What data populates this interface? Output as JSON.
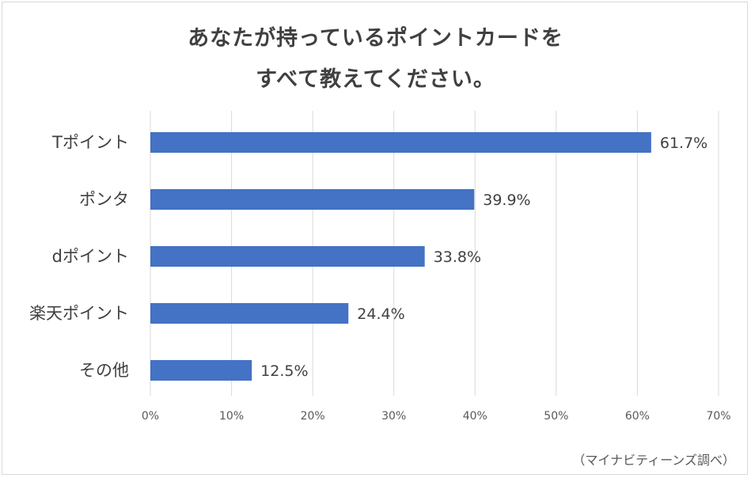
{
  "title_line1": "あなたが持っているポイントカードを",
  "title_line2": "すべて教えてください。",
  "source": "（マイナビティーンズ調べ）",
  "chart_data": {
    "type": "bar",
    "orientation": "horizontal",
    "categories": [
      "Tポイント",
      "ポンタ",
      "dポイント",
      "楽天ポイント",
      "その他"
    ],
    "values": [
      61.7,
      39.9,
      33.8,
      24.4,
      12.5
    ],
    "value_labels": [
      "61.7%",
      "39.9%",
      "33.8%",
      "24.4%",
      "12.5%"
    ],
    "xlim": [
      0,
      70
    ],
    "ticks": [
      0,
      10,
      20,
      30,
      40,
      50,
      60,
      70
    ],
    "tick_labels": [
      "0%",
      "10%",
      "20%",
      "30%",
      "40%",
      "50%",
      "60%",
      "70%"
    ],
    "grid": true,
    "bar_color": "#4472c4",
    "grid_color": "#d9d9d9"
  }
}
